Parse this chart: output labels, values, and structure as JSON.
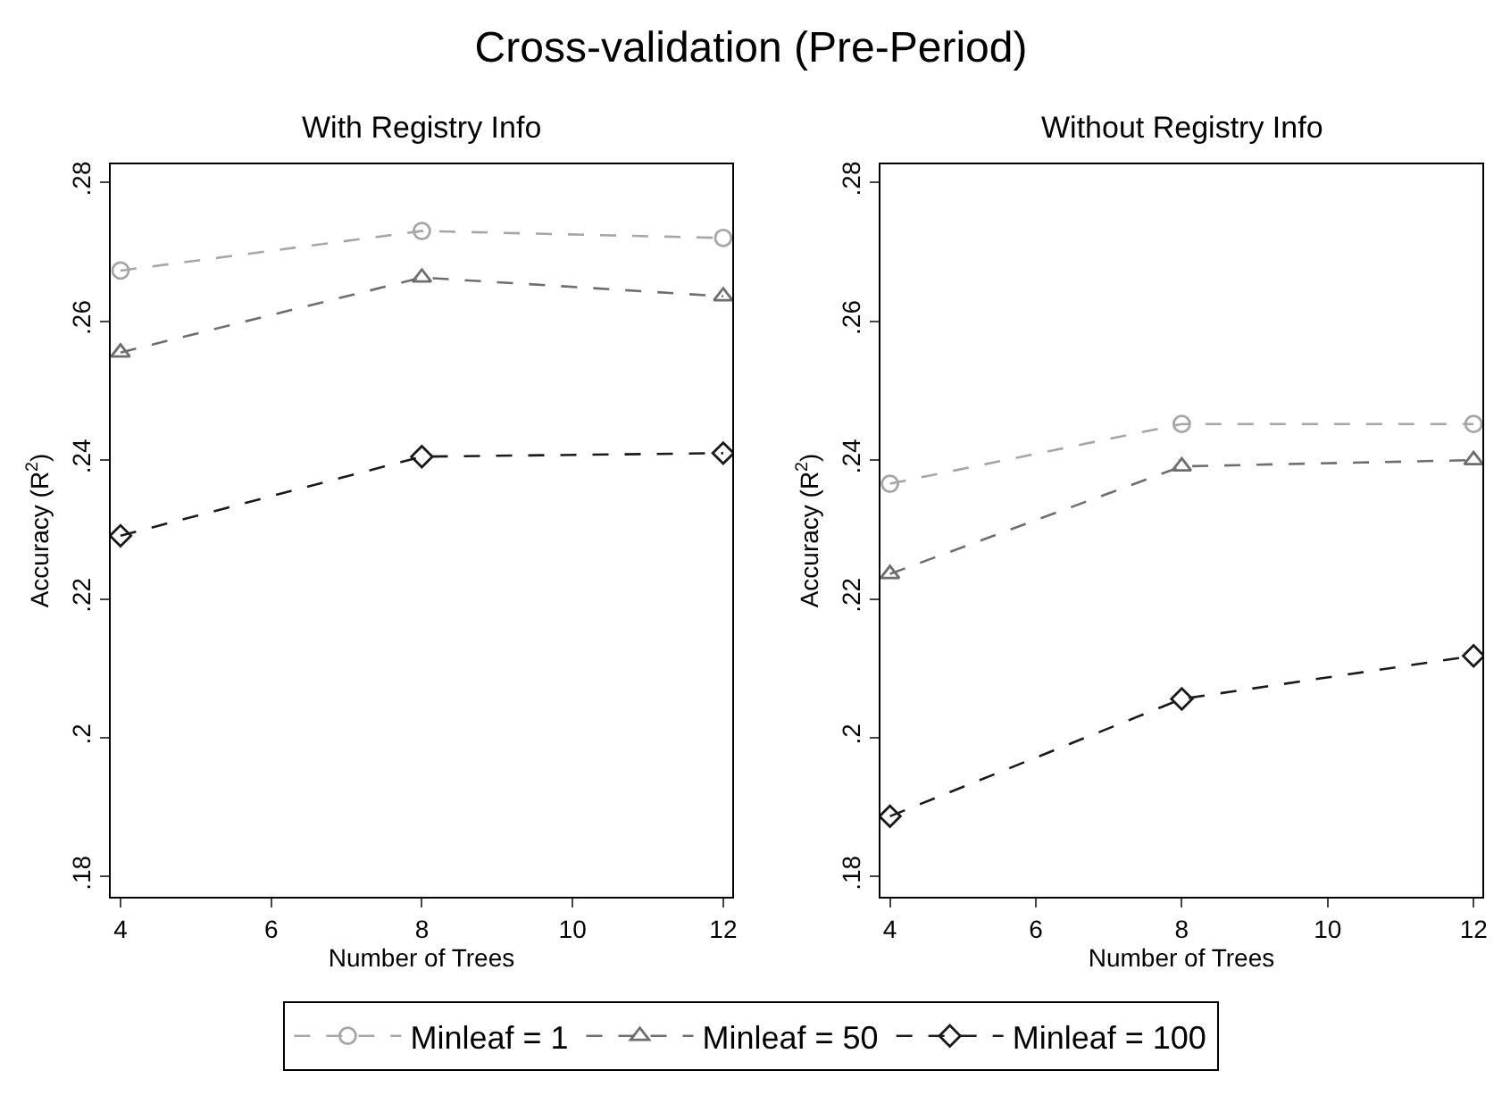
{
  "chart_data": [
    {
      "type": "line",
      "title": "Cross-validation (Pre-Period)",
      "subtitle": "With Registry Info",
      "xlabel": "Number of Trees",
      "ylabel": "Accuracy (R$^{2}$)",
      "x": [
        4,
        8,
        12
      ],
      "series": [
        {
          "name": "Minleaf = 1",
          "color": "#a6a6a6",
          "marker": "circle",
          "line_style": "dashed",
          "values": [
            0.2673,
            0.273,
            0.272
          ]
        },
        {
          "name": "Minleaf = 50",
          "color": "#6e6e6e",
          "marker": "triangle",
          "line_style": "dashed",
          "values": [
            0.2555,
            0.2663,
            0.2636
          ]
        },
        {
          "name": "Minleaf = 100",
          "color": "#1a1a1a",
          "marker": "diamond",
          "line_style": "dashed",
          "values": [
            0.2291,
            0.2405,
            0.241
          ]
        }
      ],
      "xlim": [
        3.87,
        12.12
      ],
      "xticks": [
        4,
        6,
        8,
        10,
        12
      ],
      "ylim": [
        0.1771,
        0.2826
      ],
      "yticks": [
        {
          "value": 0.18,
          "label": ".18"
        },
        {
          "value": 0.2,
          "label": ".2"
        },
        {
          "value": 0.22,
          "label": ".22"
        },
        {
          "value": 0.24,
          "label": ".24"
        },
        {
          "value": 0.26,
          "label": ".26"
        },
        {
          "value": 0.28,
          "label": ".28"
        }
      ],
      "grid": false,
      "legend": "bottom"
    },
    {
      "type": "line",
      "subtitle": "Without Registry Info",
      "xlabel": "Number of Trees",
      "ylabel": "Accuracy (R$^{2}$)",
      "x": [
        4,
        8,
        12
      ],
      "series": [
        {
          "color": "#a6a6a6",
          "marker": "circle",
          "line_style": "dashed",
          "values": [
            0.2366,
            0.2452,
            0.2452
          ]
        },
        {
          "color": "#6e6e6e",
          "marker": "triangle",
          "line_style": "dashed",
          "values": [
            0.2236,
            0.2391,
            0.24
          ]
        },
        {
          "color": "#1a1a1a",
          "marker": "diamond",
          "line_style": "dashed",
          "values": [
            0.1887,
            0.2056,
            0.2118
          ]
        }
      ],
      "xlim": [
        3.87,
        12.12
      ],
      "xticks": [
        4,
        6,
        8,
        10,
        12
      ],
      "ylim": [
        0.1771,
        0.2826
      ],
      "yticks": [
        {
          "value": 0.18,
          "label": ".18"
        },
        {
          "value": 0.2,
          "label": ".2"
        },
        {
          "value": 0.22,
          "label": ".22"
        },
        {
          "value": 0.24,
          "label": ".24"
        },
        {
          "value": 0.26,
          "label": ".26"
        },
        {
          "value": 0.28,
          "label": ".28"
        }
      ],
      "grid": false,
      "legend": false
    }
  ]
}
